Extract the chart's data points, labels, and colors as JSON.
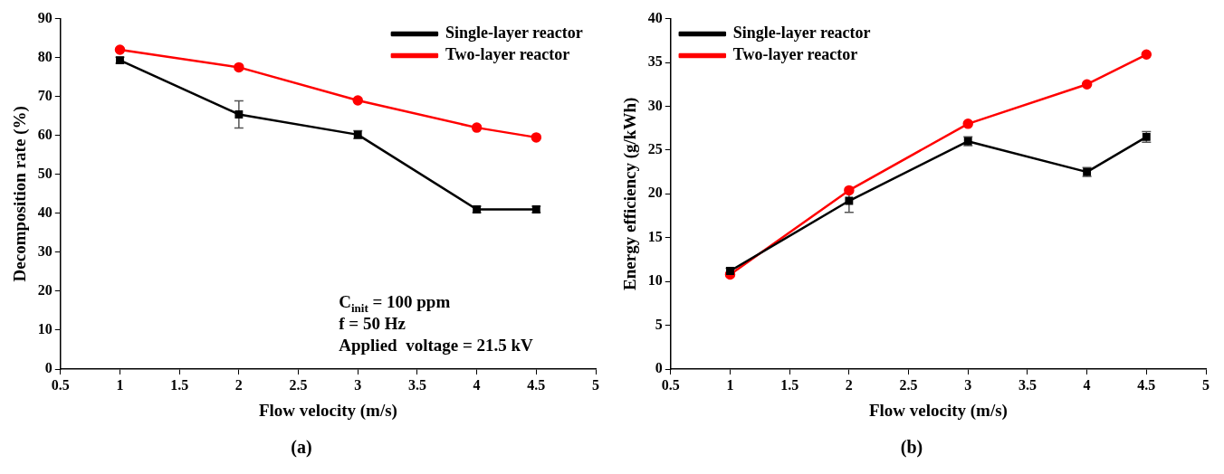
{
  "chart_data": [
    {
      "type": "line",
      "subtitle": "(a)",
      "xlabel": "Flow velocity (m/s)",
      "ylabel": "Decomposition rate (%)",
      "x": [
        1,
        2,
        3,
        4,
        4.5
      ],
      "xlim": [
        0.5,
        5
      ],
      "xticks": [
        0.5,
        1,
        1.5,
        2,
        2.5,
        3,
        3.5,
        4,
        4.5,
        5
      ],
      "ylim": [
        0,
        90
      ],
      "yticks": [
        0,
        10,
        20,
        30,
        40,
        50,
        60,
        70,
        80,
        90
      ],
      "grid": false,
      "legend": "top right",
      "annotations": [
        "C$_{init}$ = 100 ppm",
        "f = 50 Hz",
        "Applied  voltage = 21.5 kV"
      ],
      "series": [
        {
          "name": "Single-layer reactor",
          "color": "#000000",
          "marker": "square",
          "values": [
            79.3,
            65.4,
            60.2,
            41,
            41
          ],
          "errors": [
            0.8,
            3.5,
            1,
            0.8,
            0.8
          ]
        },
        {
          "name": "Two-layer reactor",
          "color": "#ff0000",
          "marker": "circle",
          "values": [
            82,
            77.5,
            69,
            62,
            59.5
          ]
        }
      ]
    },
    {
      "type": "line",
      "subtitle": "(b)",
      "xlabel": "Flow velocity (m/s)",
      "ylabel": "Energy efficiency (g/kWh)",
      "x": [
        1,
        2,
        3,
        4,
        4.5
      ],
      "xlim": [
        0.5,
        5
      ],
      "xticks": [
        0.5,
        1,
        1.5,
        2,
        2.5,
        3,
        3.5,
        4,
        4.5,
        5
      ],
      "ylim": [
        0,
        40
      ],
      "yticks": [
        0,
        5,
        10,
        15,
        20,
        25,
        30,
        35,
        40
      ],
      "grid": false,
      "legend": "top left",
      "series": [
        {
          "name": "Single-layer reactor",
          "color": "#000000",
          "marker": "square",
          "values": [
            11.2,
            19.2,
            26,
            22.5,
            26.5
          ],
          "errors": [
            0.3,
            1.3,
            0.5,
            0.5,
            0.6
          ]
        },
        {
          "name": "Two-layer reactor",
          "color": "#ff0000",
          "marker": "circle",
          "values": [
            10.8,
            20.4,
            28,
            32.5,
            35.9
          ]
        }
      ]
    }
  ]
}
